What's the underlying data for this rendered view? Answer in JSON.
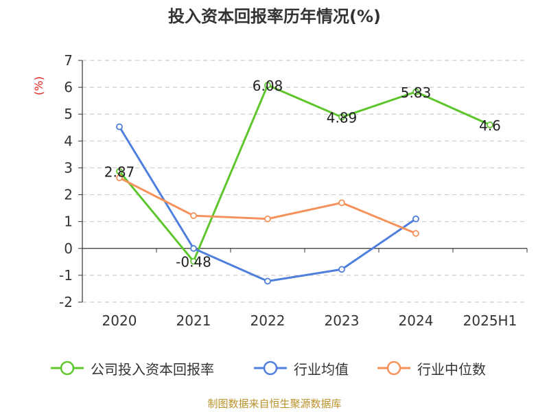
{
  "chart_data": {
    "type": "line",
    "title": "投入资本回报率历年情况(%)",
    "ylabel": "(%)",
    "xlabel": "",
    "categories": [
      "2020",
      "2021",
      "2022",
      "2023",
      "2024",
      "2025H1"
    ],
    "ylim": [
      -2,
      7
    ],
    "yticks": [
      -2,
      -1,
      0,
      1,
      2,
      3,
      4,
      5,
      6,
      7
    ],
    "grid": true,
    "legend_position": "bottom",
    "series": [
      {
        "name": "公司投入资本回报率",
        "color": "#5ec52d",
        "values": [
          2.87,
          -0.48,
          6.08,
          4.89,
          5.83,
          4.6
        ],
        "data_labels": [
          "2.87",
          "-0.48",
          "6.08",
          "4.89",
          "5.83",
          "4.6"
        ]
      },
      {
        "name": "行业均值",
        "color": "#4f7fdc",
        "values": [
          4.53,
          0.0,
          -1.22,
          -0.78,
          1.1,
          null
        ]
      },
      {
        "name": "行业中位数",
        "color": "#f5915a",
        "values": [
          2.63,
          1.22,
          1.1,
          1.7,
          0.56,
          null
        ]
      }
    ]
  },
  "source_note": "制图数据来自恒生聚源数据库",
  "colors": {
    "ylabel": "#e0201b",
    "axis": "#333333",
    "grid": "#cccccc"
  }
}
